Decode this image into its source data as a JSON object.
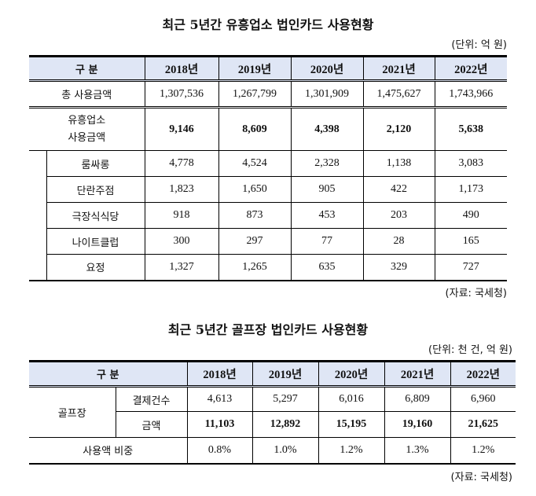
{
  "table1": {
    "title": "최근 5년간 유흥업소 법인카드 사용현황",
    "unit": "(단위: 억 원)",
    "header": [
      "구  분",
      "2018년",
      "2019년",
      "2020년",
      "2021년",
      "2022년"
    ],
    "total": {
      "label": "총 사용금액",
      "values": [
        "1,307,536",
        "1,267,799",
        "1,301,909",
        "1,475,627",
        "1,743,966"
      ]
    },
    "sub": {
      "label1": "유흥업소",
      "label2": "사용금액",
      "values": [
        "9,146",
        "8,609",
        "4,398",
        "2,120",
        "5,638"
      ]
    },
    "rows": [
      {
        "label": "룸싸롱",
        "values": [
          "4,778",
          "4,524",
          "2,328",
          "1,138",
          "3,083"
        ]
      },
      {
        "label": "단란주점",
        "values": [
          "1,823",
          "1,650",
          "905",
          "422",
          "1,173"
        ]
      },
      {
        "label": "극장식식당",
        "values": [
          "918",
          "873",
          "453",
          "203",
          "490"
        ]
      },
      {
        "label": "나이트클럽",
        "values": [
          "300",
          "297",
          "77",
          "28",
          "165"
        ]
      },
      {
        "label": "요정",
        "values": [
          "1,327",
          "1,265",
          "635",
          "329",
          "727"
        ]
      }
    ],
    "source": "(자료: 국세청)"
  },
  "table2": {
    "title": "최근 5년간 골프장 법인카드 사용현황",
    "unit": "(단위: 천 건, 억 원)",
    "header": [
      "구  분",
      "2018년",
      "2019년",
      "2020년",
      "2021년",
      "2022년"
    ],
    "group": "골프장",
    "count": {
      "label": "결제건수",
      "values": [
        "4,613",
        "5,297",
        "6,016",
        "6,809",
        "6,960"
      ]
    },
    "amount": {
      "label": "금액",
      "values": [
        "11,103",
        "12,892",
        "15,195",
        "19,160",
        "21,625"
      ]
    },
    "ratio": {
      "label": "사용액 비중",
      "values": [
        "0.8%",
        "1.0%",
        "1.2%",
        "1.3%",
        "1.2%"
      ]
    },
    "source": "(자료: 국세청)"
  }
}
